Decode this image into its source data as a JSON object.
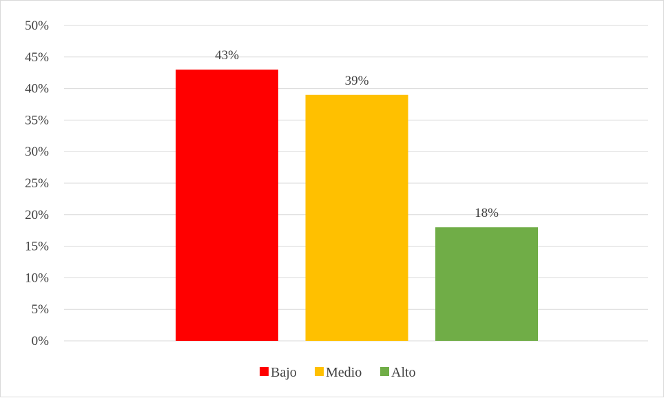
{
  "chart_data": {
    "type": "bar",
    "categories": [
      "Bajo",
      "Medio",
      "Alto"
    ],
    "values": [
      43,
      39,
      18
    ],
    "data_labels": [
      "43%",
      "39%",
      "18%"
    ],
    "colors": [
      "#ff0000",
      "#ffc000",
      "#70ad47"
    ],
    "ylim": [
      0,
      50
    ],
    "y_ticks": [
      0,
      5,
      10,
      15,
      20,
      25,
      30,
      35,
      40,
      45,
      50
    ],
    "y_tick_labels": [
      "0%",
      "5%",
      "10%",
      "15%",
      "20%",
      "25%",
      "30%",
      "35%",
      "40%",
      "45%",
      "50%"
    ],
    "grid": true,
    "legend": {
      "position": "bottom",
      "entries": [
        "Bajo",
        "Medio",
        "Alto"
      ]
    }
  }
}
